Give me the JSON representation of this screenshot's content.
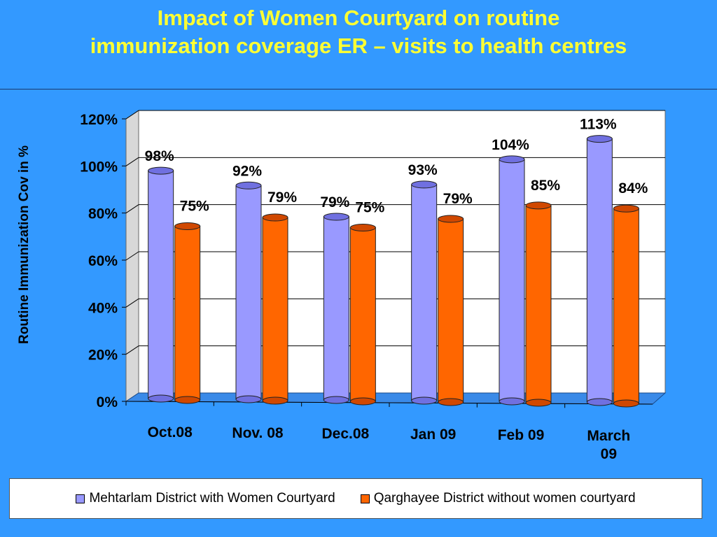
{
  "chart_data": {
    "type": "bar",
    "title": [
      "Impact of Women Courtyard on routine",
      "immunization coverage ER – visits to health centres"
    ],
    "ylabel": "Routine Immunization Cov in %",
    "ylim": [
      0,
      120
    ],
    "yticks": [
      "0%",
      "20%",
      "40%",
      "60%",
      "80%",
      "100%",
      "120%"
    ],
    "categories": [
      [
        "Oct.08"
      ],
      [
        "Nov. 08"
      ],
      [
        "Dec.08"
      ],
      [
        "Jan 09"
      ],
      [
        "Feb 09"
      ],
      [
        "March",
        "09"
      ]
    ],
    "series": [
      {
        "name": "Mehtarlam District with Women Courtyard",
        "color": "#9999ff",
        "values": [
          98,
          92,
          79,
          93,
          104,
          113
        ],
        "labels": [
          "98%",
          "92%",
          "79%",
          "93%",
          "104%",
          "113%"
        ]
      },
      {
        "name": "Qarghayee District without women courtyard",
        "color": "#ff6600",
        "values": [
          75,
          79,
          75,
          79,
          85,
          84
        ],
        "labels": [
          "75%",
          "79%",
          "75%",
          "79%",
          "85%",
          "84%"
        ]
      }
    ],
    "grid": true,
    "legend": "bottom"
  }
}
